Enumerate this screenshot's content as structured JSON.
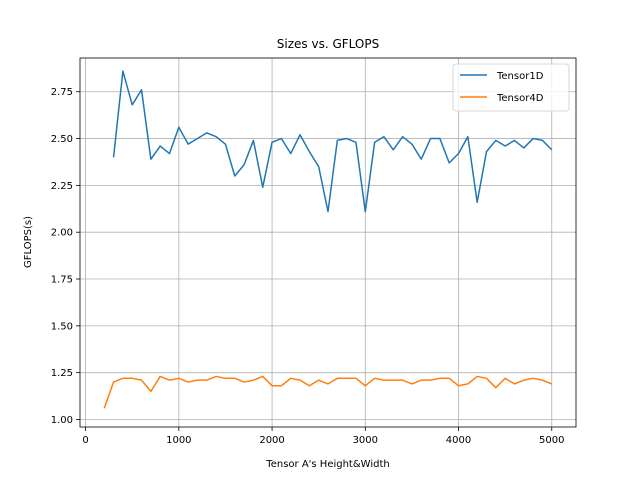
{
  "chart_data": {
    "type": "line",
    "title": "Sizes vs. GFLOPS",
    "xlabel": "Tensor A's Height&Width",
    "ylabel": "GFLOPS(s)",
    "xlim": [
      -60,
      5260
    ],
    "ylim": [
      0.96,
      2.93
    ],
    "xticks": [
      0,
      1000,
      2000,
      3000,
      4000,
      5000
    ],
    "xtick_labels": [
      "0",
      "1000",
      "2000",
      "3000",
      "4000",
      "5000"
    ],
    "yticks": [
      1.0,
      1.25,
      1.5,
      1.75,
      2.0,
      2.25,
      2.5,
      2.75
    ],
    "ytick_labels": [
      "1.00",
      "1.25",
      "1.50",
      "1.75",
      "2.00",
      "2.25",
      "2.50",
      "2.75"
    ],
    "grid": true,
    "legend_position": "top-right",
    "series": [
      {
        "name": "Tensor1D",
        "color": "#1f77b4",
        "x": [
          300,
          400,
          500,
          600,
          700,
          800,
          900,
          1000,
          1100,
          1200,
          1300,
          1400,
          1500,
          1600,
          1700,
          1800,
          1900,
          2000,
          2100,
          2200,
          2300,
          2400,
          2500,
          2600,
          2700,
          2800,
          2900,
          3000,
          3100,
          3200,
          3300,
          3400,
          3500,
          3600,
          3700,
          3800,
          3900,
          4000,
          4100,
          4200,
          4300,
          4400,
          4500,
          4600,
          4700,
          4800,
          4900,
          5000
        ],
        "y": [
          2.4,
          2.86,
          2.68,
          2.76,
          2.39,
          2.46,
          2.42,
          2.56,
          2.47,
          2.5,
          2.53,
          2.51,
          2.47,
          2.3,
          2.36,
          2.49,
          2.24,
          2.48,
          2.5,
          2.42,
          2.52,
          2.43,
          2.35,
          2.11,
          2.49,
          2.5,
          2.48,
          2.11,
          2.48,
          2.51,
          2.44,
          2.51,
          2.47,
          2.39,
          2.5,
          2.5,
          2.37,
          2.42,
          2.51,
          2.16,
          2.43,
          2.49,
          2.46,
          2.49,
          2.45,
          2.5,
          2.49,
          2.44
        ]
      },
      {
        "name": "Tensor4D",
        "color": "#ff7f0e",
        "x": [
          200,
          300,
          400,
          500,
          600,
          700,
          800,
          900,
          1000,
          1100,
          1200,
          1300,
          1400,
          1500,
          1600,
          1700,
          1800,
          1900,
          2000,
          2100,
          2200,
          2300,
          2400,
          2500,
          2600,
          2700,
          2800,
          2900,
          3000,
          3100,
          3200,
          3300,
          3400,
          3500,
          3600,
          3700,
          3800,
          3900,
          4000,
          4100,
          4200,
          4300,
          4400,
          4500,
          4600,
          4700,
          4800,
          4900,
          5000
        ],
        "y": [
          1.06,
          1.2,
          1.22,
          1.22,
          1.21,
          1.15,
          1.23,
          1.21,
          1.22,
          1.2,
          1.21,
          1.21,
          1.23,
          1.22,
          1.22,
          1.2,
          1.21,
          1.23,
          1.18,
          1.18,
          1.22,
          1.21,
          1.18,
          1.21,
          1.19,
          1.22,
          1.22,
          1.22,
          1.18,
          1.22,
          1.21,
          1.21,
          1.21,
          1.19,
          1.21,
          1.21,
          1.22,
          1.22,
          1.18,
          1.19,
          1.23,
          1.22,
          1.17,
          1.22,
          1.19,
          1.21,
          1.22,
          1.21,
          1.19
        ]
      }
    ]
  }
}
